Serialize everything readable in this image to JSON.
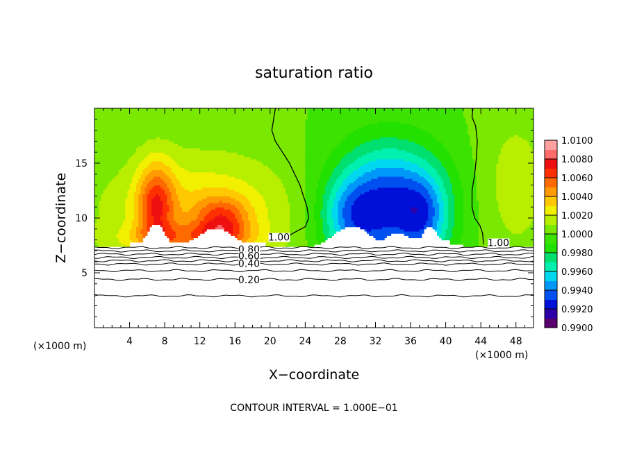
{
  "chart_data": {
    "type": "heatmap",
    "title": "saturation ratio",
    "xlabel": "X−coordinate",
    "ylabel": "Z−coordinate",
    "x_unit_left": "(×1000 m)",
    "x_unit_right": "(×1000 m)",
    "footer": "CONTOUR INTERVAL = 1.000E−01",
    "xlim": [
      0,
      50
    ],
    "ylim": [
      0,
      20
    ],
    "x_ticks": [
      4,
      8,
      12,
      16,
      20,
      24,
      28,
      32,
      36,
      40,
      44,
      48
    ],
    "y_ticks": [
      5,
      10,
      15
    ],
    "colorbar": {
      "range": [
        0.99,
        1.01
      ],
      "tick_labels": [
        "1.0100",
        "1.0080",
        "1.0060",
        "1.0040",
        "1.0020",
        "1.0000",
        "0.9980",
        "0.9960",
        "0.9940",
        "0.9920",
        "0.9900"
      ],
      "colors": [
        "#5a006e",
        "#2e00a8",
        "#0010d8",
        "#0050f0",
        "#0098f8",
        "#00d8f0",
        "#00f0b0",
        "#00e070",
        "#22e000",
        "#3ce200",
        "#7ae800",
        "#b8ee00",
        "#f0f000",
        "#ffc800",
        "#ff9a00",
        "#ff6a00",
        "#ff3000",
        "#ee1010",
        "#ff6a6a",
        "#ffa0a0"
      ]
    },
    "contour_labels": [
      {
        "text": "1.00",
        "x": 21,
        "y": 8
      },
      {
        "text": "1.00",
        "x": 46,
        "y": 7.5
      },
      {
        "text": "0.80",
        "x": 17.6,
        "y": 6.9
      },
      {
        "text": "0.60",
        "x": 17.6,
        "y": 6.3
      },
      {
        "text": "0.40",
        "x": 17.6,
        "y": 5.6
      },
      {
        "text": "0.20",
        "x": 17.6,
        "y": 4.1
      }
    ],
    "contour_line_levels": [
      2.9,
      4.4,
      5.2,
      5.8,
      6.1,
      6.4,
      6.7,
      7.0,
      7.3
    ],
    "cloud_base": 7.3,
    "features": [
      {
        "kind": "supersaturated",
        "x": 7,
        "z": 11.5,
        "peak": 1.0085
      },
      {
        "kind": "supersaturated",
        "x": 14,
        "z": 10.2,
        "peak": 1.0075
      },
      {
        "kind": "subsaturated",
        "x": 29,
        "z": 11,
        "peak": 0.9915
      },
      {
        "kind": "subsaturated",
        "x": 37,
        "z": 11,
        "peak": 0.9915
      }
    ]
  }
}
